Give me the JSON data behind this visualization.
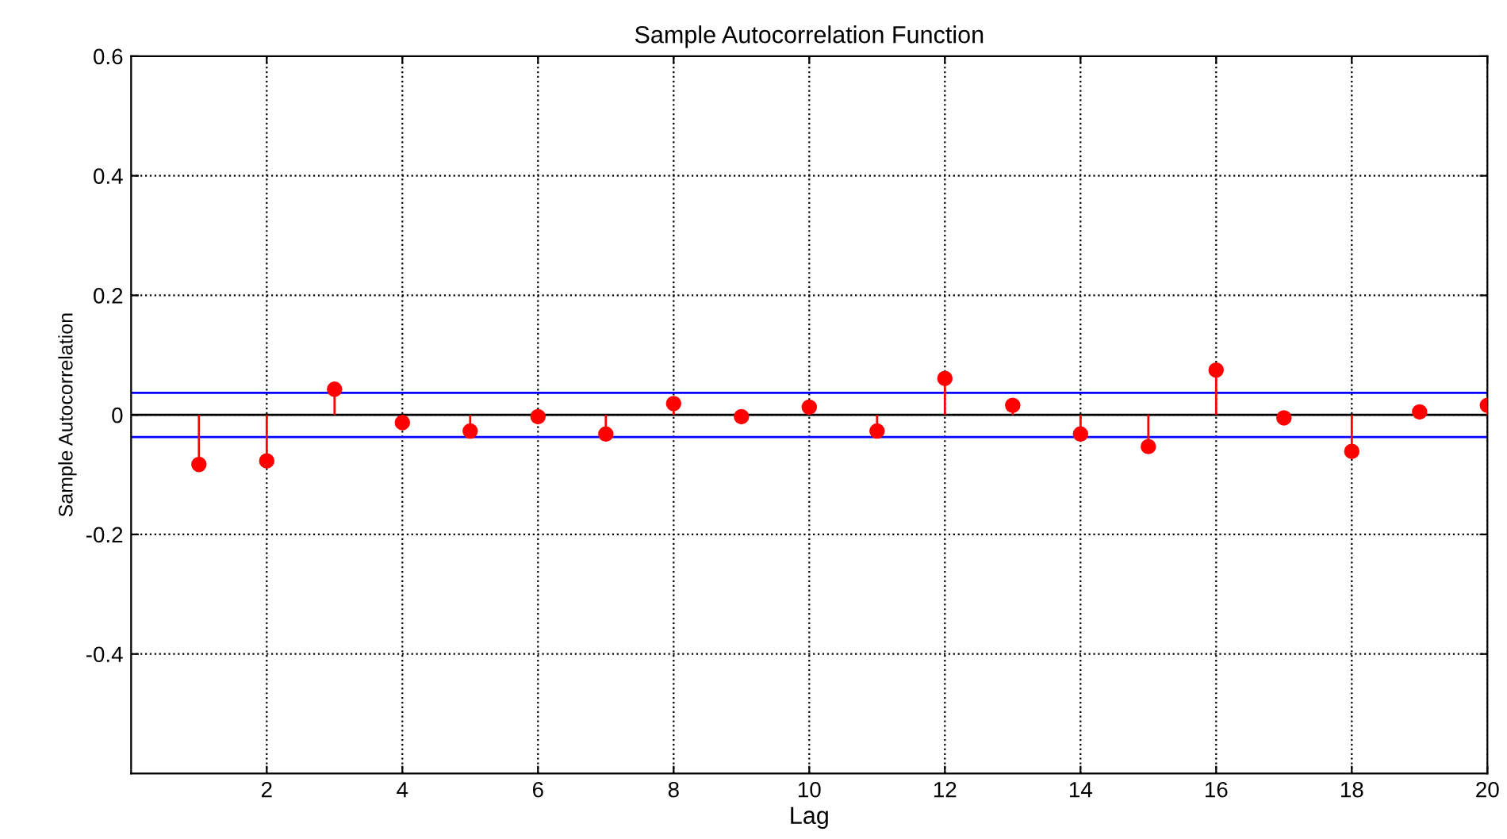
{
  "chart_data": {
    "type": "lollipop",
    "title": "Sample Autocorrelation Function",
    "xlabel": "Lag",
    "ylabel": "Sample Autocorrelation",
    "x": [
      1,
      2,
      3,
      4,
      5,
      6,
      7,
      8,
      9,
      10,
      11,
      12,
      13,
      14,
      15,
      16,
      17,
      18,
      19,
      20
    ],
    "series": [
      {
        "color": "#ff0000",
        "values": [
          -0.083,
          -0.077,
          0.043,
          -0.013,
          -0.027,
          -0.003,
          -0.032,
          0.019,
          -0.003,
          0.013,
          -0.027,
          0.061,
          0.016,
          -0.032,
          -0.053,
          0.075,
          -0.005,
          -0.061,
          0.005,
          0.016
        ]
      }
    ],
    "xlim": [
      0,
      20
    ],
    "xticks": [
      2,
      4,
      6,
      8,
      10,
      12,
      14,
      16,
      18,
      20
    ],
    "ylim": [
      -0.6,
      0.6
    ],
    "yticks": [
      -0.4,
      -0.2,
      0,
      0.2,
      0.4,
      0.6
    ],
    "ref_lines": [
      {
        "axis": "y",
        "value": 0.037,
        "color": "#0000ff"
      },
      {
        "axis": "y",
        "value": -0.037,
        "color": "#0000ff"
      }
    ],
    "grid": true,
    "marker": "circle",
    "line_style": "solid"
  }
}
